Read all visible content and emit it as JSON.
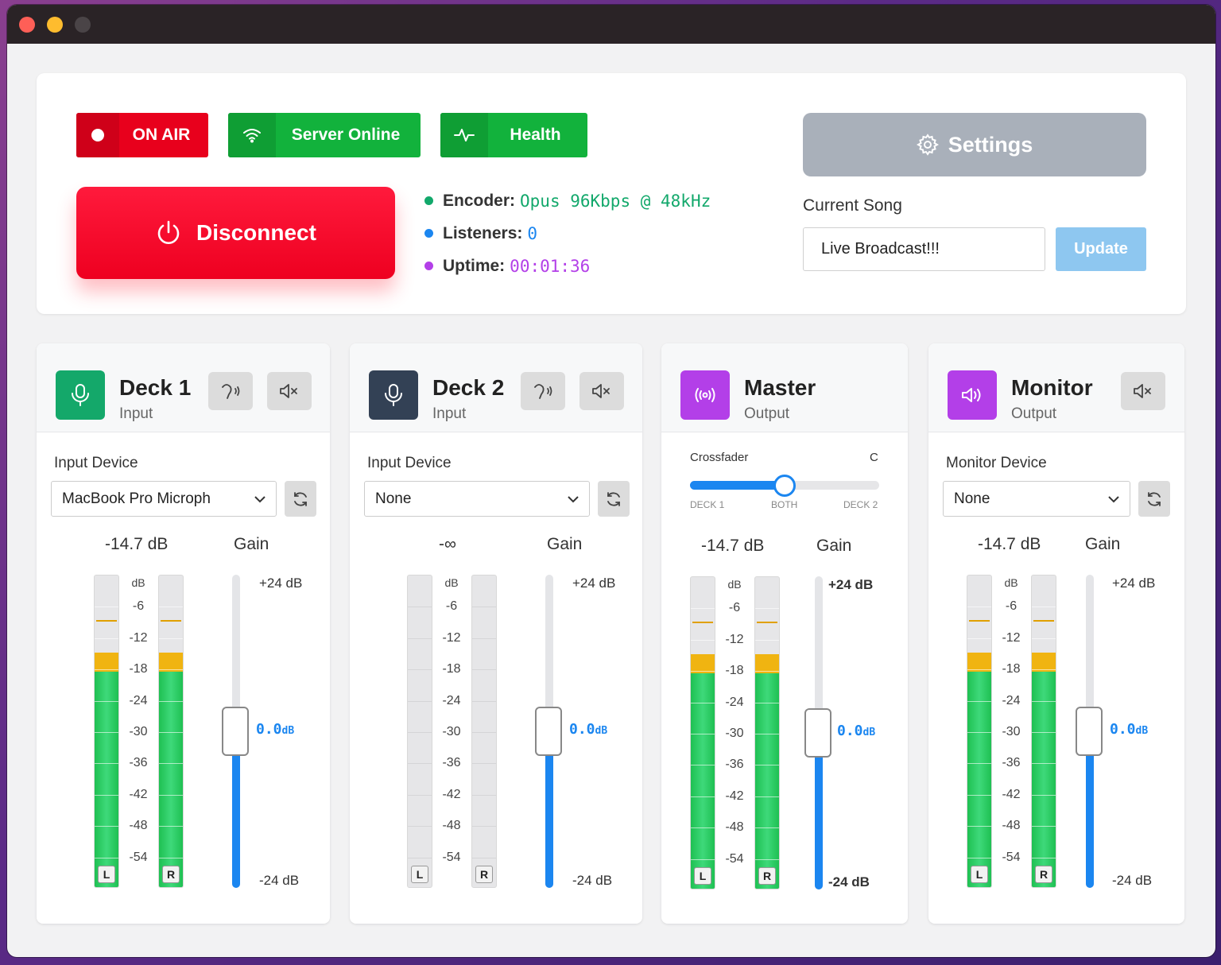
{
  "status": {
    "on_air": "ON AIR",
    "server": "Server Online",
    "health": "Health",
    "disconnect": "Disconnect"
  },
  "stats": {
    "encoder_label": "Encoder:",
    "encoder_value": "Opus 96Kbps @ 48kHz",
    "listeners_label": "Listeners:",
    "listeners_value": "0",
    "uptime_label": "Uptime:",
    "uptime_value": "00:01:36",
    "colors": {
      "encoder": "#12a86b",
      "listeners": "#1b86f0",
      "uptime": "#b33fe8"
    }
  },
  "settings_label": "Settings",
  "current_song": {
    "label": "Current Song",
    "value": "Live Broadcast!!!",
    "update_label": "Update"
  },
  "panels": {
    "deck1": {
      "title": "Deck 1",
      "subtitle": "Input",
      "device_label": "Input Device",
      "device_value": "MacBook Pro Microph",
      "level": "-14.7 dB",
      "gain_label": "Gain",
      "gain_top": "+24 dB",
      "gain_bot": "-24 dB",
      "gain_value": "0.0",
      "gain_unit": "dB",
      "meter_level_db": -14.7
    },
    "deck2": {
      "title": "Deck 2",
      "subtitle": "Input",
      "device_label": "Input Device",
      "device_value": "None",
      "level": "-∞",
      "gain_label": "Gain",
      "gain_top": "+24 dB",
      "gain_bot": "-24 dB",
      "gain_value": "0.0",
      "gain_unit": "dB",
      "meter_level_db": null
    },
    "master": {
      "title": "Master",
      "subtitle": "Output",
      "crossfader_label": "Crossfader",
      "crossfader_value": "C",
      "xf_deck1": "DECK 1",
      "xf_both": "BOTH",
      "xf_deck2": "DECK 2",
      "crossfader_position": 0.5,
      "level": "-14.7 dB",
      "gain_label": "Gain",
      "gain_top": "+24 dB",
      "gain_bot": "-24 dB",
      "gain_value": "0.0",
      "gain_unit": "dB",
      "meter_level_db": -14.7
    },
    "monitor": {
      "title": "Monitor",
      "subtitle": "Output",
      "device_label": "Monitor Device",
      "device_value": "None",
      "level": "-14.7 dB",
      "gain_label": "Gain",
      "gain_top": "+24 dB",
      "gain_bot": "-24 dB",
      "gain_value": "0.0",
      "gain_unit": "dB",
      "meter_level_db": -14.7
    }
  },
  "meter_scale": [
    "dB",
    "-6",
    "-12",
    "-18",
    "-24",
    "-30",
    "-36",
    "-42",
    "-48",
    "-54"
  ],
  "channels": {
    "left": "L",
    "right": "R"
  },
  "accent_colors": {
    "deck1": "#14a86a",
    "deck2": "#334155",
    "master": "#b33fe8",
    "monitor": "#b33fe8"
  }
}
